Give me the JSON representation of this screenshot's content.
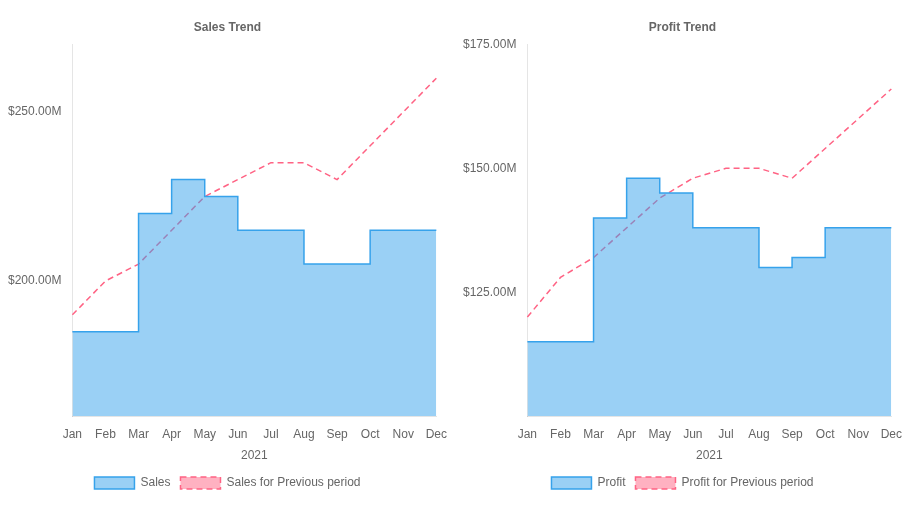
{
  "chart_data": [
    {
      "type": "line",
      "title": "Sales Trend",
      "x_label": "2021",
      "categories": [
        "Jan",
        "Feb",
        "Mar",
        "Apr",
        "May",
        "Jun",
        "Jul",
        "Aug",
        "Sep",
        "Oct",
        "Nov",
        "Dec"
      ],
      "series": [
        {
          "name": "Sales",
          "type": "area",
          "line_style": "step",
          "values": [
            185,
            185,
            185,
            220,
            230,
            225,
            215,
            215,
            205,
            205,
            215,
            215
          ]
        },
        {
          "name": "Sales for Previous period",
          "type": "line",
          "line_style": "dashed",
          "values": [
            190,
            200,
            205,
            215,
            225,
            230,
            235,
            235,
            230,
            240,
            250,
            260
          ]
        }
      ],
      "ylim": [
        160,
        270
      ],
      "yticks": [
        {
          "value": 200,
          "label": "$200.00M"
        },
        {
          "value": 250,
          "label": "$250.00M"
        }
      ],
      "grid": false,
      "legend": "bottom"
    },
    {
      "type": "line",
      "title": "Profit Trend",
      "x_label": "2021",
      "categories": [
        "Jan",
        "Feb",
        "Mar",
        "Apr",
        "May",
        "Jun",
        "Jul",
        "Aug",
        "Sep",
        "Oct",
        "Nov",
        "Dec"
      ],
      "series": [
        {
          "name": "Profit",
          "type": "area",
          "line_style": "step",
          "values": [
            115,
            115,
            115,
            140,
            148,
            145,
            138,
            138,
            130,
            132,
            138,
            138
          ]
        },
        {
          "name": "Profit for Previous period",
          "type": "line",
          "line_style": "dashed",
          "values": [
            120,
            128,
            132,
            138,
            144,
            148,
            150,
            150,
            148,
            154,
            160,
            166
          ]
        }
      ],
      "ylim": [
        100,
        175
      ],
      "yticks": [
        {
          "value": 125,
          "label": "$125.00M"
        },
        {
          "value": 150,
          "label": "$150.00M"
        },
        {
          "value": 175,
          "label": "$175.00M"
        }
      ],
      "grid": false,
      "legend": "bottom"
    }
  ]
}
